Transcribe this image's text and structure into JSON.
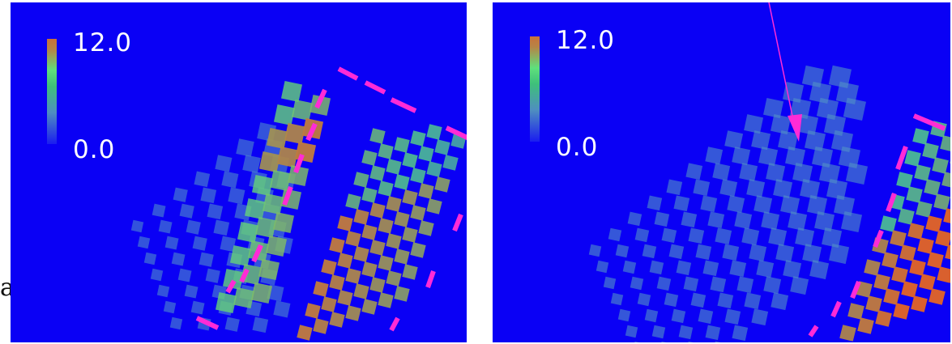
{
  "panels": [
    {
      "id": "before",
      "colorbar": {
        "max_label": "12.0",
        "min_label": "0.0"
      }
    },
    {
      "id": "after",
      "colorbar": {
        "max_label": "12.0",
        "min_label": "0.0"
      }
    }
  ],
  "side_label": "a",
  "colors": {
    "background": "#0a00f5",
    "dash": "#ff2bd6",
    "arrow": "#ff2bd6",
    "low": "#4f7dd8",
    "mid": "#58e080",
    "high": "#d9602e"
  }
}
